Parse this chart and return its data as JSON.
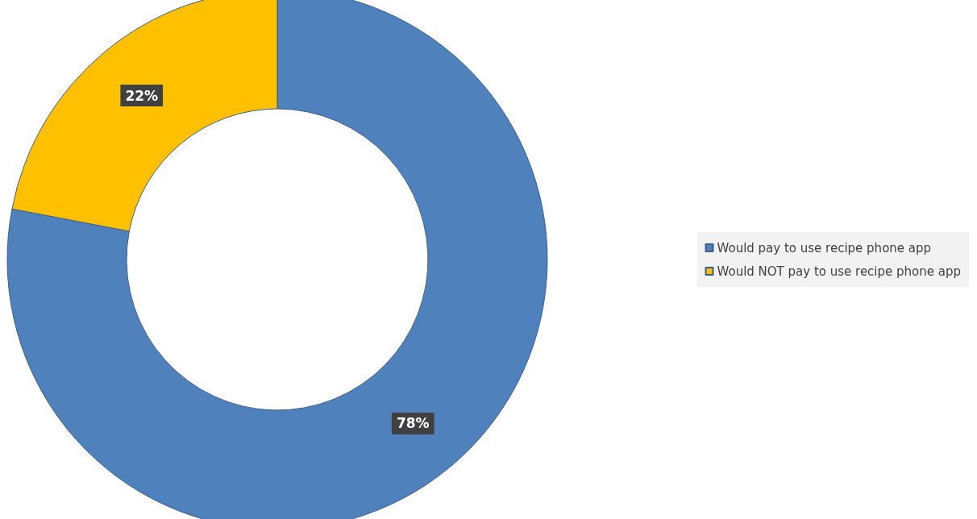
{
  "chart_data": {
    "type": "donut",
    "categories": [
      "Would pay to use recipe phone app",
      "Would NOT pay to use recipe phone app"
    ],
    "values": [
      78,
      22
    ],
    "colors": [
      "#4f81bd",
      "#ffc000"
    ],
    "value_labels": [
      "78%",
      "22%"
    ],
    "legend": "right"
  }
}
